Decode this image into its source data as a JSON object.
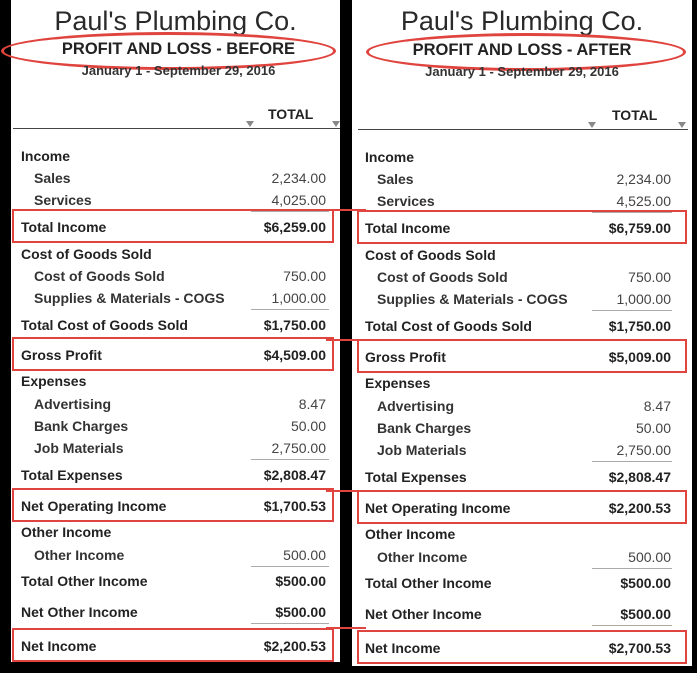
{
  "company_name": "Paul's Plumbing Co.",
  "column_header": "TOTAL",
  "highlight_color": "#e0443e",
  "reports": [
    {
      "title": "PROFIT AND LOSS - BEFORE",
      "date_range": "January 1 - September 29, 2016",
      "rows": [
        {
          "label": "Income",
          "value": "",
          "kind": "hdr"
        },
        {
          "label": "Sales",
          "value": "2,234.00",
          "kind": "item"
        },
        {
          "label": "Services",
          "value": "4,025.00",
          "kind": "item"
        },
        {
          "label": "Total Income",
          "value": "$6,259.00",
          "kind": "sub"
        },
        {
          "label": "Cost of Goods Sold",
          "value": "",
          "kind": "hdr"
        },
        {
          "label": "Cost of Goods Sold",
          "value": "750.00",
          "kind": "item"
        },
        {
          "label": "Supplies & Materials - COGS",
          "value": "1,000.00",
          "kind": "item"
        },
        {
          "label": "Total Cost of Goods Sold",
          "value": "$1,750.00",
          "kind": "sub"
        },
        {
          "label": "Gross Profit",
          "value": "$4,509.00",
          "kind": "sub"
        },
        {
          "label": "Expenses",
          "value": "",
          "kind": "hdr"
        },
        {
          "label": "Advertising",
          "value": "8.47",
          "kind": "item"
        },
        {
          "label": "Bank Charges",
          "value": "50.00",
          "kind": "item"
        },
        {
          "label": "Job Materials",
          "value": "2,750.00",
          "kind": "item"
        },
        {
          "label": "Total Expenses",
          "value": "$2,808.47",
          "kind": "sub"
        },
        {
          "label": "Net Operating Income",
          "value": "$1,700.53",
          "kind": "sub"
        },
        {
          "label": "Other Income",
          "value": "",
          "kind": "hdr"
        },
        {
          "label": "Other Income",
          "value": "500.00",
          "kind": "item"
        },
        {
          "label": "Total Other Income",
          "value": "$500.00",
          "kind": "sub"
        },
        {
          "label": "Net Other Income",
          "value": "$500.00",
          "kind": "sub"
        },
        {
          "label": "Net Income",
          "value": "$2,200.53",
          "kind": "sub"
        }
      ]
    },
    {
      "title": "PROFIT AND LOSS - AFTER",
      "date_range": "January 1 - September 29, 2016",
      "rows": [
        {
          "label": "Income",
          "value": "",
          "kind": "hdr"
        },
        {
          "label": "Sales",
          "value": "2,234.00",
          "kind": "item"
        },
        {
          "label": "Services",
          "value": "4,525.00",
          "kind": "item"
        },
        {
          "label": "Total Income",
          "value": "$6,759.00",
          "kind": "sub"
        },
        {
          "label": "Cost of Goods Sold",
          "value": "",
          "kind": "hdr"
        },
        {
          "label": "Cost of Goods Sold",
          "value": "750.00",
          "kind": "item"
        },
        {
          "label": "Supplies & Materials - COGS",
          "value": "1,000.00",
          "kind": "item"
        },
        {
          "label": "Total Cost of Goods Sold",
          "value": "$1,750.00",
          "kind": "sub"
        },
        {
          "label": "Gross Profit",
          "value": "$5,009.00",
          "kind": "sub"
        },
        {
          "label": "Expenses",
          "value": "",
          "kind": "hdr"
        },
        {
          "label": "Advertising",
          "value": "8.47",
          "kind": "item"
        },
        {
          "label": "Bank Charges",
          "value": "50.00",
          "kind": "item"
        },
        {
          "label": "Job Materials",
          "value": "2,750.00",
          "kind": "item"
        },
        {
          "label": "Total Expenses",
          "value": "$2,808.47",
          "kind": "sub"
        },
        {
          "label": "Net Operating Income",
          "value": "$2,200.53",
          "kind": "sub"
        },
        {
          "label": "Other Income",
          "value": "",
          "kind": "hdr"
        },
        {
          "label": "Other Income",
          "value": "500.00",
          "kind": "item"
        },
        {
          "label": "Total Other Income",
          "value": "$500.00",
          "kind": "sub"
        },
        {
          "label": "Net Other Income",
          "value": "$500.00",
          "kind": "sub"
        },
        {
          "label": "Net Income",
          "value": "$2,700.53",
          "kind": "sub"
        }
      ]
    }
  ]
}
